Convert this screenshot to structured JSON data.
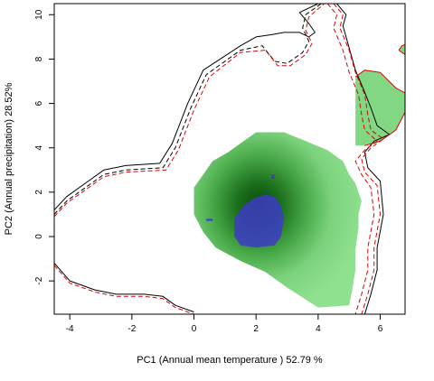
{
  "chart_data": {
    "type": "heatmap",
    "title": "",
    "xlabel": "PC1 (Annual mean temperature ) 52.79 %",
    "ylabel": "PC2 (Annual precipitation) 28.52%",
    "xlim": [
      -4.5,
      6.8
    ],
    "ylim": [
      -3.5,
      10.5
    ],
    "x_ticks": [
      -4,
      -2,
      0,
      2,
      4,
      6
    ],
    "y_ticks": [
      -2,
      0,
      2,
      4,
      6,
      8,
      10
    ],
    "grid": false,
    "legend": "none",
    "colors": {
      "density_low": "#8fe08f",
      "density_high": "#0b4a0b",
      "overlap": "#3c3cc4",
      "region_b_fill": "#82d882",
      "region_a_outline": "#000000",
      "region_b_outline": "#dd0000"
    },
    "series": [
      {
        "kind": "density-region",
        "color_scale": "green",
        "peak": [
          2.1,
          1.4
        ],
        "polygon": [
          [
            0,
            2.2
          ],
          [
            0.3,
            2.8
          ],
          [
            0.6,
            3.4
          ],
          [
            1.1,
            3.8
          ],
          [
            1.5,
            4.2
          ],
          [
            2.0,
            4.7
          ],
          [
            2.9,
            4.7
          ],
          [
            3.6,
            4.3
          ],
          [
            4.3,
            3.9
          ],
          [
            4.8,
            3.4
          ],
          [
            5.0,
            2.8
          ],
          [
            5.2,
            2.4
          ],
          [
            5.4,
            1.6
          ],
          [
            5.3,
            1.0
          ],
          [
            5.3,
            0.4
          ],
          [
            5.2,
            -0.6
          ],
          [
            5.2,
            -1.5
          ],
          [
            5.1,
            -2.4
          ],
          [
            5.0,
            -3.1
          ],
          [
            4.0,
            -3.2
          ],
          [
            3.0,
            -2.3
          ],
          [
            2.3,
            -1.6
          ],
          [
            1.5,
            -1.1
          ],
          [
            0.7,
            -0.5
          ],
          [
            0.3,
            0.2
          ],
          [
            0.0,
            1.0
          ]
        ]
      },
      {
        "kind": "density-region",
        "color_scale": "flat",
        "polygon": [
          [
            5.2,
            7.2
          ],
          [
            5.5,
            7.5
          ],
          [
            6.0,
            7.4
          ],
          [
            6.5,
            6.7
          ],
          [
            6.9,
            6.4
          ],
          [
            6.8,
            5.6
          ],
          [
            6.5,
            4.8
          ],
          [
            6.0,
            4.3
          ],
          [
            5.5,
            4.1
          ],
          [
            5.2,
            4.1
          ]
        ]
      },
      {
        "kind": "density-region",
        "color_scale": "flat",
        "polygon": [
          [
            6.6,
            8.4
          ],
          [
            6.7,
            8.6
          ],
          [
            6.9,
            8.7
          ],
          [
            7.0,
            8.4
          ],
          [
            6.8,
            8.2
          ]
        ]
      },
      {
        "kind": "overlap-region",
        "color": "overlap",
        "polygons": [
          [
            [
              1.3,
              0.8
            ],
            [
              1.6,
              1.4
            ],
            [
              1.9,
              1.7
            ],
            [
              2.3,
              1.9
            ],
            [
              2.6,
              1.8
            ],
            [
              2.8,
              1.4
            ],
            [
              2.9,
              0.8
            ],
            [
              2.8,
              0.0
            ],
            [
              2.6,
              -0.4
            ],
            [
              2.0,
              -0.5
            ],
            [
              1.5,
              -0.4
            ],
            [
              1.3,
              0.0
            ]
          ],
          [
            [
              2.5,
              2.8
            ],
            [
              2.6,
              2.8
            ],
            [
              2.6,
              2.6
            ],
            [
              2.5,
              2.6
            ]
          ],
          [
            [
              0.4,
              0.8
            ],
            [
              0.6,
              0.8
            ],
            [
              0.6,
              0.7
            ],
            [
              0.4,
              0.7
            ]
          ]
        ]
      },
      {
        "kind": "envelope",
        "color": "region_a_outline",
        "dash": "solid",
        "path": [
          [
            -4.5,
            1.2
          ],
          [
            -4.1,
            1.8
          ],
          [
            -3.5,
            2.4
          ],
          [
            -2.9,
            3.0
          ],
          [
            -2.2,
            3.2
          ],
          [
            -1.1,
            3.3
          ],
          [
            -0.7,
            4.2
          ],
          [
            -0.2,
            6.0
          ],
          [
            0.3,
            7.5
          ],
          [
            1.5,
            8.6
          ],
          [
            2.0,
            9.0
          ],
          [
            2.5,
            9.1
          ],
          [
            2.9,
            9.2
          ],
          [
            3.4,
            9.2
          ],
          [
            3.7,
            9.0
          ],
          [
            3.9,
            9.2
          ],
          [
            3.7,
            9.6
          ],
          [
            3.4,
            10.1
          ],
          [
            4.0,
            10.5
          ]
        ]
      },
      {
        "kind": "envelope",
        "color": "region_a_outline",
        "dash": "solid",
        "path": [
          [
            4.6,
            10.5
          ],
          [
            4.9,
            10.0
          ],
          [
            4.8,
            9.5
          ],
          [
            5.0,
            8.5
          ],
          [
            5.2,
            7.5
          ],
          [
            5.5,
            6.5
          ],
          [
            5.7,
            5.8
          ],
          [
            5.9,
            5.0
          ],
          [
            6.3,
            4.6
          ],
          [
            5.8,
            4.3
          ],
          [
            5.5,
            3.8
          ],
          [
            5.6,
            3.1
          ],
          [
            6.0,
            2.5
          ],
          [
            6.1,
            1.0
          ],
          [
            5.9,
            -0.5
          ],
          [
            5.9,
            -1.5
          ],
          [
            5.7,
            -2.6
          ],
          [
            5.5,
            -3.5
          ]
        ]
      },
      {
        "kind": "envelope",
        "color": "region_a_outline",
        "dash": "solid",
        "path": [
          [
            -4.5,
            -1.2
          ],
          [
            -4.0,
            -2.0
          ],
          [
            -3.2,
            -2.4
          ],
          [
            -2.5,
            -2.6
          ],
          [
            -1.6,
            -2.6
          ],
          [
            -1.0,
            -2.7
          ],
          [
            -0.6,
            -3.1
          ],
          [
            0.0,
            -3.4
          ]
        ]
      },
      {
        "kind": "envelope",
        "color": "region_a_outline",
        "dash": "dashed",
        "path": [
          [
            -4.5,
            1.0
          ],
          [
            -4.1,
            1.6
          ],
          [
            -3.5,
            2.2
          ],
          [
            -2.9,
            2.8
          ],
          [
            -2.2,
            3.0
          ],
          [
            -1.0,
            3.1
          ],
          [
            -0.6,
            4.0
          ],
          [
            -0.1,
            5.8
          ],
          [
            0.4,
            7.3
          ],
          [
            1.5,
            8.4
          ],
          [
            2.2,
            8.6
          ],
          [
            2.6,
            7.9
          ],
          [
            3.0,
            7.8
          ],
          [
            3.5,
            8.3
          ],
          [
            3.7,
            8.8
          ],
          [
            3.5,
            9.4
          ],
          [
            3.6,
            10.0
          ],
          [
            4.1,
            10.5
          ]
        ]
      },
      {
        "kind": "envelope",
        "color": "region_b_outline",
        "dash": "dashed",
        "path": [
          [
            -4.5,
            0.9
          ],
          [
            -4.1,
            1.5
          ],
          [
            -3.5,
            2.1
          ],
          [
            -2.9,
            2.7
          ],
          [
            -2.2,
            2.9
          ],
          [
            -0.9,
            3.0
          ],
          [
            -0.5,
            3.9
          ],
          [
            0.0,
            5.7
          ],
          [
            0.5,
            7.2
          ],
          [
            1.5,
            8.3
          ],
          [
            2.3,
            8.4
          ],
          [
            2.7,
            7.7
          ],
          [
            3.1,
            7.7
          ],
          [
            3.6,
            8.2
          ],
          [
            3.8,
            8.7
          ],
          [
            3.6,
            9.3
          ],
          [
            3.7,
            9.9
          ],
          [
            4.2,
            10.5
          ]
        ]
      },
      {
        "kind": "envelope",
        "color": "region_b_outline",
        "dash": "dashed",
        "path": [
          [
            4.3,
            10.5
          ],
          [
            4.6,
            10.0
          ],
          [
            4.5,
            9.4
          ],
          [
            4.8,
            8.4
          ],
          [
            5.0,
            7.4
          ],
          [
            5.3,
            6.4
          ],
          [
            5.4,
            5.5
          ],
          [
            5.5,
            4.8
          ],
          [
            5.9,
            4.3
          ],
          [
            5.5,
            3.9
          ],
          [
            5.2,
            3.4
          ],
          [
            5.4,
            2.8
          ],
          [
            5.7,
            2.2
          ],
          [
            5.8,
            1.0
          ],
          [
            5.6,
            -0.5
          ],
          [
            5.6,
            -1.5
          ],
          [
            5.4,
            -2.6
          ],
          [
            5.2,
            -3.5
          ]
        ]
      },
      {
        "kind": "envelope",
        "color": "region_b_outline",
        "dash": "dashed",
        "path": [
          [
            4.5,
            10.5
          ],
          [
            4.8,
            10.0
          ],
          [
            4.7,
            9.4
          ],
          [
            5.0,
            8.4
          ],
          [
            5.2,
            7.4
          ],
          [
            5.5,
            6.4
          ],
          [
            5.6,
            5.5
          ],
          [
            5.7,
            4.8
          ],
          [
            6.1,
            4.4
          ],
          [
            5.7,
            4.0
          ],
          [
            5.4,
            3.5
          ],
          [
            5.5,
            2.9
          ],
          [
            5.9,
            2.3
          ],
          [
            6.0,
            1.0
          ],
          [
            5.8,
            -0.5
          ],
          [
            5.8,
            -1.5
          ],
          [
            5.6,
            -2.6
          ],
          [
            5.4,
            -3.5
          ]
        ]
      },
      {
        "kind": "envelope",
        "color": "region_b_outline",
        "dash": "dashed",
        "path": [
          [
            -4.5,
            -1.3
          ],
          [
            -4.0,
            -2.1
          ],
          [
            -3.2,
            -2.5
          ],
          [
            -2.5,
            -2.7
          ],
          [
            -1.6,
            -2.7
          ],
          [
            -1.0,
            -2.8
          ],
          [
            -0.6,
            -3.2
          ],
          [
            0.0,
            -3.5
          ]
        ]
      },
      {
        "kind": "envelope",
        "color": "region_b_outline",
        "dash": "solid",
        "path": [
          [
            5.2,
            7.2
          ],
          [
            5.5,
            7.5
          ],
          [
            6.0,
            7.4
          ],
          [
            6.5,
            6.7
          ],
          [
            6.9,
            6.4
          ],
          [
            6.8,
            5.6
          ],
          [
            6.5,
            4.8
          ],
          [
            6.0,
            4.3
          ],
          [
            5.5,
            4.1
          ]
        ]
      },
      {
        "kind": "envelope",
        "color": "region_b_outline",
        "dash": "solid",
        "path": [
          [
            6.6,
            8.4
          ],
          [
            6.7,
            8.6
          ],
          [
            6.9,
            8.7
          ],
          [
            7.0,
            8.4
          ],
          [
            6.8,
            8.2
          ],
          [
            6.6,
            8.4
          ]
        ]
      }
    ]
  }
}
